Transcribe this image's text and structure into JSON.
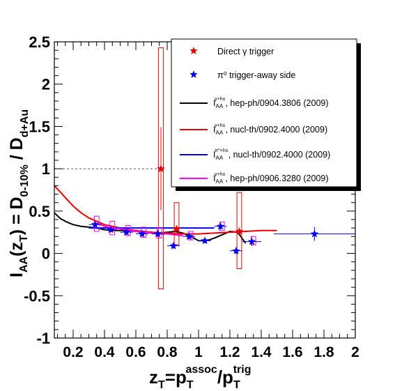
{
  "chart_data": {
    "type": "scatter",
    "xlabel": {
      "main": "z",
      "sub1": "T",
      "eq": "=p",
      "sub2": "T",
      "sup2": "assoc",
      "slash": "/p",
      "sub3": "T",
      "sup3": "trig"
    },
    "ylabel": {
      "pre": "I",
      "sub_aa": "AA",
      "paren1": "(z",
      "sub_t": "T",
      "paren2": ") = D",
      "sub_010": "0-10%",
      "slash": " / D",
      "sub_dau": "d+Au"
    },
    "xlim": [
      0.08,
      2.0
    ],
    "ylim": [
      -1.0,
      2.5
    ],
    "x_ticks": [
      0.2,
      0.4,
      0.6,
      0.8,
      1.0,
      1.2,
      1.4,
      1.6,
      1.8,
      2.0
    ],
    "x_tick_labels": [
      "0.2",
      "0.4",
      "0.6",
      "0.8",
      "1",
      "1.2",
      "1.4",
      "1.6",
      "1.8",
      "2"
    ],
    "y_ticks": [
      -1.0,
      -0.5,
      0.0,
      0.5,
      1.0,
      1.5,
      2.0,
      2.5
    ],
    "y_tick_labels": [
      "-1",
      "-0.5",
      "0",
      "0.5",
      "1",
      "1.5",
      "2",
      "2.5"
    ],
    "reference_line": {
      "y": 1.0,
      "x_to": 0.78,
      "style": "dashed",
      "color": "#555555"
    },
    "legend": {
      "placement": "top-right",
      "entries": [
        {
          "kind": "marker",
          "color": "#ee0000",
          "label": "Direct γ trigger"
        },
        {
          "kind": "marker",
          "color": "#0000ee",
          "label": "π⁰ trigger-away side"
        },
        {
          "kind": "line",
          "color": "#000000",
          "label_main": "I",
          "label_sub": "AA",
          "label_sup": "γ+h±",
          "label_rest": ", hep-ph/0904.3806 (2009)"
        },
        {
          "kind": "line",
          "color": "#ee0000",
          "label_main": "I",
          "label_sub": "AA",
          "label_sup": "γ+h±",
          "label_rest": ", nucl-th/0902.4000 (2009)"
        },
        {
          "kind": "line",
          "color": "#0000ee",
          "label_main": "I",
          "label_sub": "AA",
          "label_sup": "π⁰+h±",
          "label_rest": ", nucl-th/0902.4000 (2009)"
        },
        {
          "kind": "line",
          "color": "#ff00ff",
          "label_main": "I",
          "label_sub": "AA",
          "label_sup": "γ+h±",
          "label_rest": ", hep-ph/0906.3280 (2009)"
        }
      ]
    },
    "series": [
      {
        "kind": "points",
        "color": "#ee0000",
        "points": [
          {
            "x": 0.76,
            "y": 1.0,
            "yerr": 0.49,
            "sys_lo": -0.42,
            "sys_hi": 2.43,
            "sys_hw": 0.015
          },
          {
            "x": 0.86,
            "y": 0.29,
            "yerr": 0.0,
            "sys_lo": 0.1,
            "sys_hi": 0.6,
            "sys_hw": 0.015
          },
          {
            "x": 1.26,
            "y": 0.26,
            "yerr": 0.0,
            "sys_lo": -0.18,
            "sys_hi": 0.72,
            "sys_hw": 0.015
          }
        ]
      },
      {
        "kind": "points",
        "color": "#0000ee",
        "points": [
          {
            "x": 0.34,
            "y": 0.34,
            "xerr": 0.04,
            "yerr": 0.03
          },
          {
            "x": 0.44,
            "y": 0.28,
            "xerr": 0.04,
            "yerr": 0.03
          },
          {
            "x": 0.54,
            "y": 0.25,
            "xerr": 0.04,
            "yerr": 0.03
          },
          {
            "x": 0.64,
            "y": 0.23,
            "xerr": 0.04,
            "yerr": 0.03
          },
          {
            "x": 0.74,
            "y": 0.23,
            "xerr": 0.04,
            "yerr": 0.03
          },
          {
            "x": 0.84,
            "y": 0.09,
            "xerr": 0.04,
            "yerr": 0.04
          },
          {
            "x": 0.94,
            "y": 0.2,
            "xerr": 0.04,
            "yerr": 0.03
          },
          {
            "x": 1.04,
            "y": 0.15,
            "xerr": 0.04,
            "yerr": 0.03
          },
          {
            "x": 1.14,
            "y": 0.32,
            "xerr": 0.04,
            "yerr": 0.04
          },
          {
            "x": 1.24,
            "y": 0.03,
            "xerr": 0.04,
            "yerr": 0.04
          },
          {
            "x": 1.34,
            "y": 0.14,
            "xerr": 0.06,
            "yerr": 0.05
          },
          {
            "x": 1.74,
            "y": 0.23,
            "xerr": 0.26,
            "yerr": 0.08
          }
        ]
      },
      {
        "kind": "points",
        "color": "#ff00ff",
        "points": [
          {
            "x": 0.35,
            "y": 0.35,
            "sys_lo": 0.26,
            "sys_hi": 0.44,
            "sys_hw": 0.015
          },
          {
            "x": 0.45,
            "y": 0.3,
            "sys_lo": 0.22,
            "sys_hi": 0.38,
            "sys_hw": 0.015
          },
          {
            "x": 0.55,
            "y": 0.27,
            "sys_lo": 0.21,
            "sys_hi": 0.33,
            "sys_hw": 0.015
          },
          {
            "x": 0.65,
            "y": 0.25,
            "sys_lo": 0.19,
            "sys_hi": 0.31,
            "sys_hw": 0.015
          },
          {
            "x": 0.75,
            "y": 0.24,
            "sys_lo": 0.18,
            "sys_hi": 0.3,
            "sys_hw": 0.015
          },
          {
            "x": 0.95,
            "y": 0.21,
            "sys_lo": 0.16,
            "sys_hi": 0.26,
            "sys_hw": 0.015
          },
          {
            "x": 1.15,
            "y": 0.32,
            "sys_lo": 0.27,
            "sys_hi": 0.37,
            "sys_hw": 0.015
          },
          {
            "x": 1.35,
            "y": 0.14,
            "sys_lo": 0.1,
            "sys_hi": 0.2,
            "sys_hw": 0.015
          }
        ]
      },
      {
        "kind": "curve",
        "color": "#000000",
        "x": [
          0.08,
          0.12,
          0.16,
          0.2,
          0.25,
          0.3,
          0.35,
          0.4,
          0.45,
          0.5,
          0.55,
          0.6,
          0.65,
          0.7,
          0.75,
          0.8,
          0.85,
          0.9,
          0.95,
          1.0,
          1.05,
          1.1,
          1.15,
          1.2,
          1.25,
          1.3
        ],
        "y": [
          0.48,
          0.41,
          0.37,
          0.34,
          0.32,
          0.31,
          0.3,
          0.28,
          0.27,
          0.27,
          0.27,
          0.26,
          0.25,
          0.25,
          0.24,
          0.25,
          0.26,
          0.24,
          0.2,
          0.15,
          0.15,
          0.18,
          0.22,
          0.26,
          0.25,
          0.12
        ]
      },
      {
        "kind": "curve",
        "color": "#ee0000",
        "x": [
          0.08,
          0.12,
          0.16,
          0.2,
          0.25,
          0.3,
          0.35,
          0.4,
          0.45,
          0.5,
          0.6,
          0.7,
          0.8,
          0.9,
          1.0,
          1.1,
          1.2,
          1.3,
          1.4,
          1.5
        ],
        "y": [
          0.8,
          0.72,
          0.64,
          0.56,
          0.48,
          0.42,
          0.38,
          0.34,
          0.32,
          0.3,
          0.27,
          0.25,
          0.24,
          0.23,
          0.23,
          0.24,
          0.25,
          0.26,
          0.27,
          0.27
        ]
      },
      {
        "kind": "curve",
        "color": "#0000ee",
        "x": [
          0.3,
          0.35,
          0.4,
          0.5,
          0.6,
          0.7,
          0.8,
          0.9,
          1.0,
          1.1
        ],
        "y": [
          0.3,
          0.3,
          0.3,
          0.3,
          0.3,
          0.3,
          0.3,
          0.3,
          0.3,
          0.3
        ]
      },
      {
        "kind": "curve",
        "color": "#ff00ff",
        "x": [
          0.35,
          0.4,
          0.45,
          0.5,
          0.55,
          0.6,
          0.65,
          0.7,
          0.75,
          0.8,
          0.85,
          0.9
        ],
        "y": [
          0.36,
          0.32,
          0.3,
          0.29,
          0.28,
          0.26,
          0.25,
          0.24,
          0.23,
          0.23,
          0.22,
          0.21
        ]
      }
    ]
  }
}
